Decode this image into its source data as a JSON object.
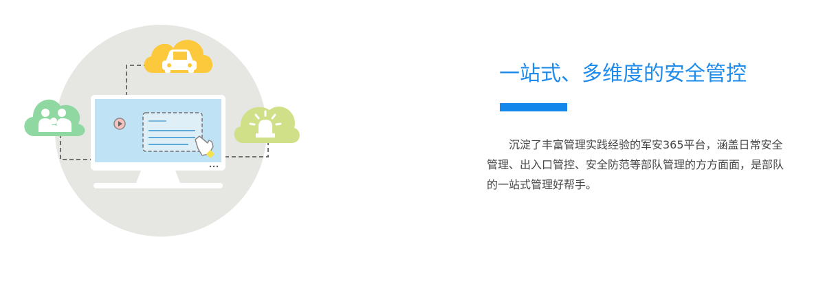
{
  "colors": {
    "accent": "#1f8bea",
    "bar": "#1487ea",
    "circle": "#e6e6e2",
    "cloud_car": "#fbc93b",
    "cloud_people": "#8fd8a2",
    "cloud_alarm": "#cfe089",
    "screen": "#bfe2f4"
  },
  "icons": {
    "car": "car-icon",
    "people": "people-icon",
    "alarm": "alarm-light-icon",
    "monitor": "monitor-icon",
    "play": "play-icon",
    "hand": "hand-pointer-icon"
  },
  "content": {
    "headline": "一站式、多维度的安全管控",
    "description": "沉淀了丰富管理实践经验的军安365平台，涵盖日常安全管理、出入口管控、安全防范等部队管理的方方面面，是部队的一站式管理好帮手。"
  }
}
